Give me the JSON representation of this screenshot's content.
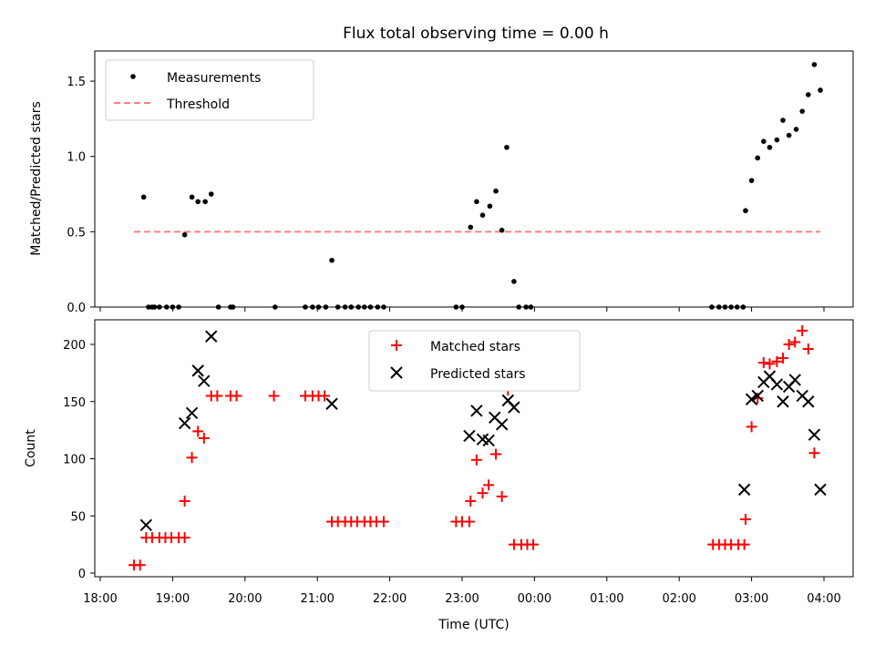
{
  "chart_data": [
    {
      "type": "scatter",
      "title": "Flux total observing time = 0.00 h",
      "ylabel": "Matched/Predicted stars",
      "xlabel": "",
      "xlim": [
        18.0,
        4.4
      ],
      "ylim": [
        0,
        1.7
      ],
      "yticks": [
        "0.0",
        "0.5",
        "1.0",
        "1.5"
      ],
      "grid": false,
      "legend_position": "upper-left",
      "series": [
        {
          "name": "Measurements",
          "marker": "dot",
          "color": "#000000",
          "points": [
            [
              "18:40",
              0.0
            ],
            [
              "18:45",
              0.0
            ],
            [
              "18:36",
              0.73
            ],
            [
              "18:43",
              0.0
            ],
            [
              "18:49",
              0.0
            ],
            [
              "18:55",
              0.0
            ],
            [
              "19:00",
              0.0
            ],
            [
              "19:05",
              0.0
            ],
            [
              "19:10",
              0.48
            ],
            [
              "19:16",
              0.73
            ],
            [
              "19:21",
              0.7
            ],
            [
              "19:27",
              0.7
            ],
            [
              "19:32",
              0.75
            ],
            [
              "19:38",
              0.0
            ],
            [
              "19:48",
              0.0
            ],
            [
              "19:50",
              0.0
            ],
            [
              "20:25",
              0.0
            ],
            [
              "20:50",
              0.0
            ],
            [
              "20:56",
              0.0
            ],
            [
              "21:01",
              0.0
            ],
            [
              "21:07",
              0.0
            ],
            [
              "21:12",
              0.31
            ],
            [
              "21:17",
              0.0
            ],
            [
              "21:23",
              0.0
            ],
            [
              "21:28",
              0.0
            ],
            [
              "21:34",
              0.0
            ],
            [
              "21:39",
              0.0
            ],
            [
              "21:44",
              0.0
            ],
            [
              "21:50",
              0.0
            ],
            [
              "21:55",
              0.0
            ],
            [
              "22:55",
              0.0
            ],
            [
              "23:00",
              0.0
            ],
            [
              "23:07",
              0.53
            ],
            [
              "23:12",
              0.7
            ],
            [
              "23:17",
              0.61
            ],
            [
              "23:23",
              0.67
            ],
            [
              "23:28",
              0.77
            ],
            [
              "23:33",
              0.51
            ],
            [
              "23:37",
              1.06
            ],
            [
              "23:43",
              0.17
            ],
            [
              "23:47",
              0.0
            ],
            [
              "23:53",
              0.0
            ],
            [
              "23:57",
              0.0
            ],
            [
              "02:27",
              0.0
            ],
            [
              "02:33",
              0.0
            ],
            [
              "02:38",
              0.0
            ],
            [
              "02:43",
              0.0
            ],
            [
              "02:48",
              0.0
            ],
            [
              "02:53",
              0.0
            ],
            [
              "02:55",
              0.64
            ],
            [
              "03:00",
              0.84
            ],
            [
              "03:05",
              0.99
            ],
            [
              "03:10",
              1.1
            ],
            [
              "03:15",
              1.06
            ],
            [
              "03:21",
              1.11
            ],
            [
              "03:26",
              1.24
            ],
            [
              "03:31",
              1.14
            ],
            [
              "03:37",
              1.18
            ],
            [
              "03:42",
              1.3
            ],
            [
              "03:47",
              1.41
            ],
            [
              "03:52",
              1.61
            ],
            [
              "03:57",
              1.44
            ]
          ]
        },
        {
          "name": "Threshold",
          "line_style": "dashed",
          "color": "#ff8080",
          "points": [
            [
              "18:28",
              0.5
            ],
            [
              "03:57",
              0.5
            ]
          ]
        }
      ]
    },
    {
      "type": "scatter",
      "title": "",
      "ylabel": "Count",
      "xlabel": "Time (UTC)",
      "xlim": [
        18.0,
        4.4
      ],
      "ylim": [
        0,
        220
      ],
      "yticks": [
        "0",
        "50",
        "100",
        "150",
        "200"
      ],
      "xticks": [
        "18:00",
        "19:00",
        "20:00",
        "21:00",
        "22:00",
        "23:00",
        "00:00",
        "01:00",
        "02:00",
        "03:00",
        "04:00"
      ],
      "grid": false,
      "legend_position": "upper-center",
      "series": [
        {
          "name": "Matched stars",
          "marker": "plus",
          "color": "#ff0000",
          "points": [
            [
              "18:28",
              7
            ],
            [
              "18:33",
              7
            ],
            [
              "18:38",
              31
            ],
            [
              "18:43",
              31
            ],
            [
              "18:49",
              31
            ],
            [
              "18:54",
              31
            ],
            [
              "18:59",
              31
            ],
            [
              "19:05",
              31
            ],
            [
              "19:10",
              31
            ],
            [
              "19:10",
              63
            ],
            [
              "19:16",
              101
            ],
            [
              "19:21",
              124
            ],
            [
              "19:26",
              118
            ],
            [
              "19:32",
              155
            ],
            [
              "19:37",
              155
            ],
            [
              "19:48",
              155
            ],
            [
              "19:53",
              155
            ],
            [
              "20:24",
              155
            ],
            [
              "20:50",
              155
            ],
            [
              "20:56",
              155
            ],
            [
              "21:01",
              155
            ],
            [
              "21:06",
              155
            ],
            [
              "21:12",
              45
            ],
            [
              "21:17",
              45
            ],
            [
              "21:23",
              45
            ],
            [
              "21:28",
              45
            ],
            [
              "21:33",
              45
            ],
            [
              "21:39",
              45
            ],
            [
              "21:44",
              45
            ],
            [
              "21:49",
              45
            ],
            [
              "21:55",
              45
            ],
            [
              "22:55",
              45
            ],
            [
              "23:00",
              45
            ],
            [
              "23:06",
              45
            ],
            [
              "23:07",
              63
            ],
            [
              "23:12",
              99
            ],
            [
              "23:17",
              70
            ],
            [
              "23:22",
              77
            ],
            [
              "23:28",
              104
            ],
            [
              "23:33",
              67
            ],
            [
              "23:38",
              160
            ],
            [
              "23:43",
              25
            ],
            [
              "23:49",
              25
            ],
            [
              "23:54",
              25
            ],
            [
              "23:59",
              25
            ],
            [
              "02:28",
              25
            ],
            [
              "02:33",
              25
            ],
            [
              "02:38",
              25
            ],
            [
              "02:43",
              25
            ],
            [
              "02:49",
              25
            ],
            [
              "02:54",
              25
            ],
            [
              "02:55",
              47
            ],
            [
              "03:00",
              128
            ],
            [
              "03:05",
              153
            ],
            [
              "03:10",
              184
            ],
            [
              "03:15",
              183
            ],
            [
              "03:21",
              185
            ],
            [
              "03:26",
              188
            ],
            [
              "03:31",
              200
            ],
            [
              "03:36",
              202
            ],
            [
              "03:42",
              212
            ],
            [
              "03:47",
              196
            ],
            [
              "03:52",
              105
            ]
          ]
        },
        {
          "name": "Predicted stars",
          "marker": "cross",
          "color": "#000000",
          "points": [
            [
              "18:38",
              42
            ],
            [
              "19:10",
              131
            ],
            [
              "19:16",
              140
            ],
            [
              "19:21",
              177
            ],
            [
              "19:26",
              168
            ],
            [
              "19:32",
              207
            ],
            [
              "21:12",
              148
            ],
            [
              "23:06",
              120
            ],
            [
              "23:12",
              142
            ],
            [
              "23:17",
              117
            ],
            [
              "23:22",
              116
            ],
            [
              "23:27",
              136
            ],
            [
              "23:33",
              130
            ],
            [
              "23:38",
              151
            ],
            [
              "23:43",
              145
            ],
            [
              "02:54",
              73
            ],
            [
              "03:00",
              152
            ],
            [
              "03:05",
              155
            ],
            [
              "03:10",
              167
            ],
            [
              "03:15",
              172
            ],
            [
              "03:21",
              165
            ],
            [
              "03:26",
              150
            ],
            [
              "03:31",
              163
            ],
            [
              "03:36",
              169
            ],
            [
              "03:42",
              155
            ],
            [
              "03:47",
              150
            ],
            [
              "03:52",
              121
            ],
            [
              "03:57",
              73
            ]
          ]
        }
      ]
    }
  ]
}
